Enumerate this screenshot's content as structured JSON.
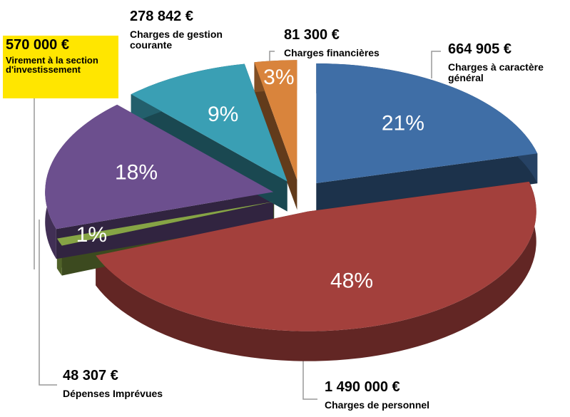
{
  "chart_data": {
    "type": "pie",
    "categories": [
      "Charges à caractère général",
      "Charges de personnel",
      "Dépenses Imprévues",
      "Virement à la section d'investissement",
      "Charges de gestion courante",
      "Charges financières"
    ],
    "values": [
      21,
      48,
      1,
      18,
      9,
      3
    ],
    "value_labels": [
      "21%",
      "48%",
      "1%",
      "18%",
      "9%",
      "3%"
    ],
    "amount_labels": [
      "664 905 €",
      "1 490 000 €",
      "48 307 €",
      "570 000 €",
      "278 842 €",
      "81 300 €"
    ],
    "colors": [
      "#3f6ea6",
      "#a3403c",
      "#86a445",
      "#6c4f8e",
      "#3a9fb4",
      "#d9843c"
    ]
  }
}
